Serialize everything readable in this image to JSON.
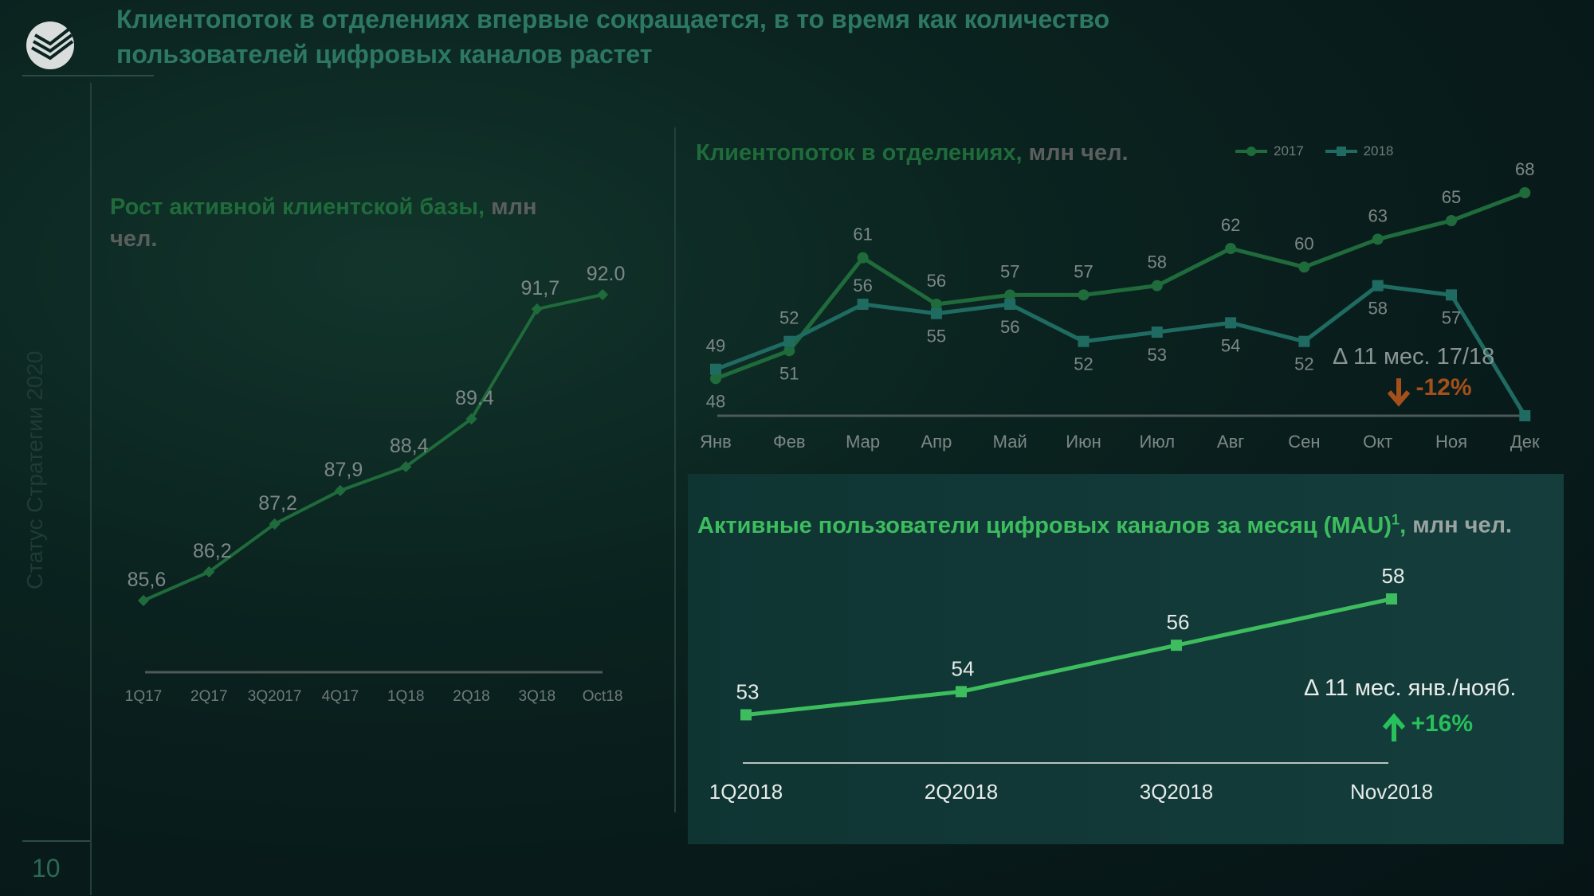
{
  "header": {
    "headline": "Клиентопоток в отделениях впервые сокращается, в то время как количество пользователей цифровых каналов растет",
    "side_label": "Статус Стратегии 2020",
    "page_number": "10"
  },
  "colors": {
    "green_dark": "#1f6b3b",
    "green_2017": "#1f6b3b",
    "teal_2018": "#1f6b62",
    "green_bright": "#3dbd5e",
    "down_orange": "#a4501a"
  },
  "left_chart": {
    "title": "Рост активной клиентской базы,",
    "unit": "млн чел."
  },
  "branch_chart": {
    "title": "Клиентопоток в отделениях,",
    "unit": "млн чел.",
    "delta_label": "Δ 11 мес. 17/18",
    "delta_value": "-12%"
  },
  "mau_chart": {
    "title": "Активные пользователи цифровых каналов за месяц (MAU)",
    "footnote_mark": "1",
    "unit_sep": ",",
    "unit": "млн чел.",
    "delta_label": "Δ 11 мес. янв./нояб.",
    "delta_value": "+16%"
  },
  "chart_data": [
    {
      "type": "line",
      "title": "Рост активной клиентской базы, млн чел.",
      "categories": [
        "1Q17",
        "2Q17",
        "3Q2017",
        "4Q17",
        "1Q18",
        "2Q18",
        "3Q18",
        "Oct18"
      ],
      "series": [
        {
          "values": [
            85.6,
            86.2,
            87.2,
            87.9,
            88.4,
            89.4,
            91.7,
            92.0
          ],
          "labels": [
            "85,6",
            "86,2",
            "87,2",
            "87,9",
            "88,4",
            "89.4",
            "91,7",
            "92.0"
          ]
        }
      ],
      "grid": false
    },
    {
      "type": "line",
      "title": "Клиентопоток в отделениях, млн чел.",
      "categories": [
        "Янв",
        "Фев",
        "Мар",
        "Апр",
        "Май",
        "Июн",
        "Июл",
        "Авг",
        "Сен",
        "Окт",
        "Ноя",
        "Дек"
      ],
      "series": [
        {
          "name": "2017",
          "values": [
            48,
            51,
            61,
            56,
            57,
            57,
            58,
            62,
            60,
            63,
            65,
            68
          ]
        },
        {
          "name": "2018",
          "values": [
            49,
            52,
            56,
            55,
            56,
            52,
            53,
            54,
            52,
            58,
            57,
            null
          ]
        }
      ],
      "legend": "top-right",
      "grid": false
    },
    {
      "type": "line",
      "title": "Активные пользователи цифровых каналов за месяц (MAU), млн чел.",
      "categories": [
        "1Q2018",
        "2Q2018",
        "3Q2018",
        "Nov2018"
      ],
      "series": [
        {
          "values": [
            53,
            54,
            56,
            58
          ]
        }
      ],
      "grid": false
    }
  ]
}
